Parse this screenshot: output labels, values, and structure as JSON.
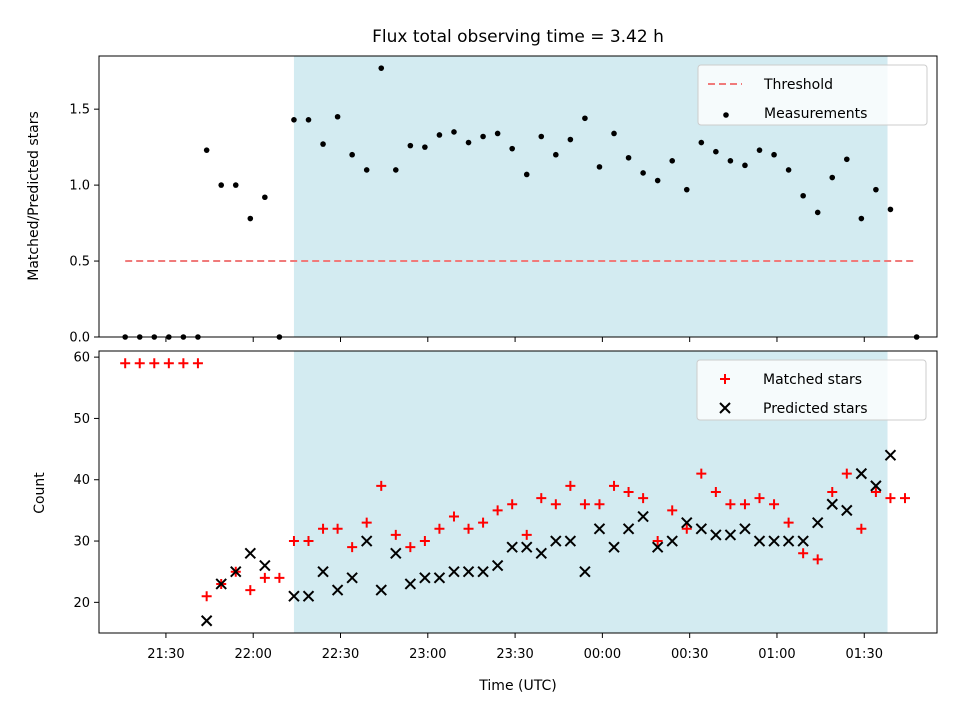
{
  "chart_data": [
    {
      "type": "scatter",
      "title": "Flux total observing time = 3.42 h",
      "ylabel": "Matched/Predicted stars",
      "ylim": [
        0,
        1.85
      ],
      "yticks": [
        0.0,
        0.5,
        1.0,
        1.5
      ],
      "ytick_labels": [
        "0.0",
        "0.5",
        "1.0",
        "1.5"
      ],
      "shaded_span": [
        "22:14",
        "01:38"
      ],
      "shaded_color": "#d3ebf1",
      "legend": {
        "placement": "top-right",
        "entries": [
          "Threshold",
          "Measurements"
        ]
      },
      "threshold": {
        "name": "Threshold",
        "y": 0.5,
        "x_range": [
          "21:16",
          "01:48"
        ],
        "color": "#f07a7a"
      },
      "series": [
        {
          "name": "Measurements",
          "color": "#000000",
          "points": [
            [
              "21:16",
              0.0
            ],
            [
              "21:21",
              0.0
            ],
            [
              "21:26",
              0.0
            ],
            [
              "21:31",
              0.0
            ],
            [
              "21:36",
              0.0
            ],
            [
              "21:41",
              0.0
            ],
            [
              "21:44",
              1.23
            ],
            [
              "21:49",
              1.0
            ],
            [
              "21:54",
              1.0
            ],
            [
              "21:59",
              0.78
            ],
            [
              "22:04",
              0.92
            ],
            [
              "22:09",
              0.0
            ],
            [
              "22:14",
              1.43
            ],
            [
              "22:19",
              1.43
            ],
            [
              "22:24",
              1.27
            ],
            [
              "22:29",
              1.45
            ],
            [
              "22:34",
              1.2
            ],
            [
              "22:39",
              1.1
            ],
            [
              "22:44",
              1.77
            ],
            [
              "22:49",
              1.1
            ],
            [
              "22:54",
              1.26
            ],
            [
              "22:59",
              1.25
            ],
            [
              "23:04",
              1.33
            ],
            [
              "23:09",
              1.35
            ],
            [
              "23:14",
              1.28
            ],
            [
              "23:19",
              1.32
            ],
            [
              "23:24",
              1.34
            ],
            [
              "23:29",
              1.24
            ],
            [
              "23:34",
              1.07
            ],
            [
              "23:39",
              1.32
            ],
            [
              "23:44",
              1.2
            ],
            [
              "23:49",
              1.3
            ],
            [
              "23:54",
              1.44
            ],
            [
              "23:59",
              1.12
            ],
            [
              "00:04",
              1.34
            ],
            [
              "00:09",
              1.18
            ],
            [
              "00:14",
              1.08
            ],
            [
              "00:19",
              1.03
            ],
            [
              "00:24",
              1.16
            ],
            [
              "00:29",
              0.97
            ],
            [
              "00:34",
              1.28
            ],
            [
              "00:39",
              1.22
            ],
            [
              "00:44",
              1.16
            ],
            [
              "00:49",
              1.13
            ],
            [
              "00:54",
              1.23
            ],
            [
              "00:59",
              1.2
            ],
            [
              "01:04",
              1.1
            ],
            [
              "01:09",
              0.93
            ],
            [
              "01:14",
              0.82
            ],
            [
              "01:19",
              1.05
            ],
            [
              "01:24",
              1.17
            ],
            [
              "01:29",
              0.78
            ],
            [
              "01:34",
              0.97
            ],
            [
              "01:39",
              0.84
            ],
            [
              "01:48",
              0.0
            ]
          ]
        }
      ]
    },
    {
      "type": "scatter",
      "xlabel": "Time (UTC)",
      "ylabel": "Count",
      "ylim": [
        15,
        61
      ],
      "yticks": [
        20,
        30,
        40,
        50,
        60
      ],
      "ytick_labels": [
        "20",
        "30",
        "40",
        "50",
        "60"
      ],
      "xticks": [
        "21:30",
        "22:00",
        "22:30",
        "23:00",
        "23:30",
        "00:00",
        "00:30",
        "01:00",
        "01:30"
      ],
      "xtick_labels": [
        "21:30",
        "22:00",
        "22:30",
        "23:00",
        "23:30",
        "00:00",
        "00:30",
        "01:00",
        "01:30"
      ],
      "shaded_span": [
        "22:14",
        "01:38"
      ],
      "shaded_color": "#d3ebf1",
      "legend": {
        "placement": "top-right",
        "entries": [
          "Matched stars",
          "Predicted stars"
        ]
      },
      "series": [
        {
          "name": "Matched stars",
          "marker": "plus",
          "color": "#ff0000",
          "points": [
            [
              "21:16",
              59
            ],
            [
              "21:21",
              59
            ],
            [
              "21:26",
              59
            ],
            [
              "21:31",
              59
            ],
            [
              "21:36",
              59
            ],
            [
              "21:41",
              59
            ],
            [
              "21:44",
              21
            ],
            [
              "21:49",
              23
            ],
            [
              "21:54",
              25
            ],
            [
              "21:59",
              22
            ],
            [
              "22:04",
              24
            ],
            [
              "22:09",
              24
            ],
            [
              "22:14",
              30
            ],
            [
              "22:19",
              30
            ],
            [
              "22:24",
              32
            ],
            [
              "22:29",
              32
            ],
            [
              "22:34",
              29
            ],
            [
              "22:39",
              33
            ],
            [
              "22:44",
              39
            ],
            [
              "22:49",
              31
            ],
            [
              "22:54",
              29
            ],
            [
              "22:59",
              30
            ],
            [
              "23:04",
              32
            ],
            [
              "23:09",
              34
            ],
            [
              "23:14",
              32
            ],
            [
              "23:19",
              33
            ],
            [
              "23:24",
              35
            ],
            [
              "23:29",
              36
            ],
            [
              "23:34",
              31
            ],
            [
              "23:39",
              37
            ],
            [
              "23:44",
              36
            ],
            [
              "23:49",
              39
            ],
            [
              "23:54",
              36
            ],
            [
              "23:59",
              36
            ],
            [
              "00:04",
              39
            ],
            [
              "00:09",
              38
            ],
            [
              "00:14",
              37
            ],
            [
              "00:19",
              30
            ],
            [
              "00:24",
              35
            ],
            [
              "00:29",
              32
            ],
            [
              "00:34",
              41
            ],
            [
              "00:39",
              38
            ],
            [
              "00:44",
              36
            ],
            [
              "00:49",
              36
            ],
            [
              "00:54",
              37
            ],
            [
              "00:59",
              36
            ],
            [
              "01:04",
              33
            ],
            [
              "01:09",
              28
            ],
            [
              "01:14",
              27
            ],
            [
              "01:19",
              38
            ],
            [
              "01:24",
              41
            ],
            [
              "01:29",
              32
            ],
            [
              "01:34",
              38
            ],
            [
              "01:39",
              37
            ],
            [
              "01:44",
              37
            ]
          ]
        },
        {
          "name": "Predicted stars",
          "marker": "x",
          "color": "#000000",
          "points": [
            [
              "21:44",
              17
            ],
            [
              "21:49",
              23
            ],
            [
              "21:54",
              25
            ],
            [
              "21:59",
              28
            ],
            [
              "22:04",
              26
            ],
            [
              "22:14",
              21
            ],
            [
              "22:19",
              21
            ],
            [
              "22:24",
              25
            ],
            [
              "22:29",
              22
            ],
            [
              "22:34",
              24
            ],
            [
              "22:39",
              30
            ],
            [
              "22:44",
              22
            ],
            [
              "22:49",
              28
            ],
            [
              "22:54",
              23
            ],
            [
              "22:59",
              24
            ],
            [
              "23:04",
              24
            ],
            [
              "23:09",
              25
            ],
            [
              "23:14",
              25
            ],
            [
              "23:19",
              25
            ],
            [
              "23:24",
              26
            ],
            [
              "23:29",
              29
            ],
            [
              "23:34",
              29
            ],
            [
              "23:39",
              28
            ],
            [
              "23:44",
              30
            ],
            [
              "23:49",
              30
            ],
            [
              "23:54",
              25
            ],
            [
              "23:59",
              32
            ],
            [
              "00:04",
              29
            ],
            [
              "00:09",
              32
            ],
            [
              "00:14",
              34
            ],
            [
              "00:19",
              29
            ],
            [
              "00:24",
              30
            ],
            [
              "00:29",
              33
            ],
            [
              "00:34",
              32
            ],
            [
              "00:39",
              31
            ],
            [
              "00:44",
              31
            ],
            [
              "00:49",
              32
            ],
            [
              "00:54",
              30
            ],
            [
              "00:59",
              30
            ],
            [
              "01:04",
              30
            ],
            [
              "01:09",
              30
            ],
            [
              "01:14",
              33
            ],
            [
              "01:19",
              36
            ],
            [
              "01:24",
              35
            ],
            [
              "01:29",
              41
            ],
            [
              "01:34",
              39
            ],
            [
              "01:39",
              44
            ]
          ]
        }
      ]
    }
  ]
}
